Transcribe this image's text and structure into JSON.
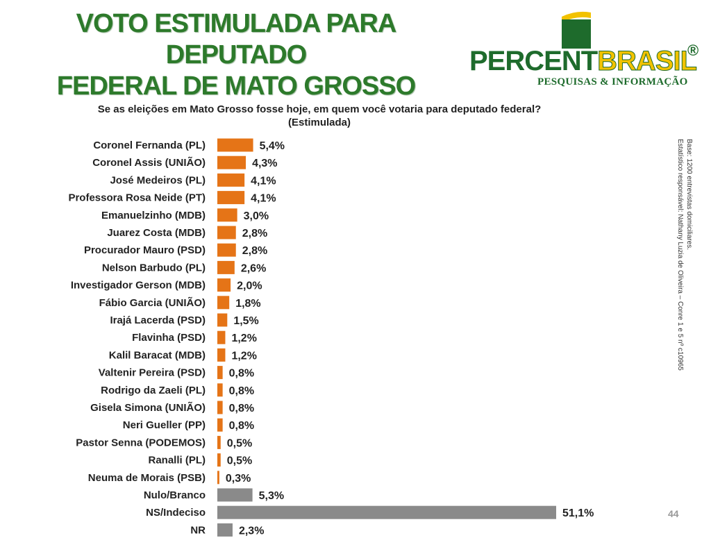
{
  "title_line1": "VOTO ESTIMULADA PARA DEPUTADO",
  "title_line2": "FEDERAL DE MATO GROSSO",
  "logo": {
    "name_part1": "PERCENT",
    "name_part2": "BRASIL",
    "registered": "®",
    "tagline": "PESQUISAS & INFORMAÇÃO",
    "green": "#1e6b2c",
    "yellow": "#f2c200"
  },
  "question_line1": "Se as eleições em Mato Grosso fosse hoje, em quem você votaria para deputado federal?",
  "question_line2": "(Estimulada)",
  "side_note_line1": "Base: 1200 entrevistas domiciliares.",
  "side_note_line2": "Estatístico responsável: Nathany Luzia de Oliveira – Conre 1 e 5 nº c10965",
  "page_number": "44",
  "chart_data": {
    "type": "bar",
    "orientation": "horizontal",
    "xlim": [
      0,
      55
    ],
    "grid": false,
    "categories": [
      "Coronel Fernanda (PL)",
      "Coronel Assis (UNIÃO)",
      "José Medeiros (PL)",
      "Professora Rosa Neide (PT)",
      "Emanuelzinho (MDB)",
      "Juarez Costa (MDB)",
      "Procurador Mauro (PSD)",
      "Nelson Barbudo (PL)",
      "Investigador Gerson (MDB)",
      "Fábio Garcia (UNIÃO)",
      "Irajá Lacerda (PSD)",
      "Flavinha (PSD)",
      "Kalil Baracat (MDB)",
      "Valtenir Pereira (PSD)",
      "Rodrigo da Zaeli (PL)",
      "Gisela Simona (UNIÃO)",
      "Neri Gueller (PP)",
      "Pastor Senna (PODEMOS)",
      "Ranalli (PL)",
      "Neuma de Morais (PSB)",
      "Nulo/Branco",
      "NS/Indeciso",
      "NR"
    ],
    "values": [
      5.4,
      4.3,
      4.1,
      4.1,
      3.0,
      2.8,
      2.8,
      2.6,
      2.0,
      1.8,
      1.5,
      1.2,
      1.2,
      0.8,
      0.8,
      0.8,
      0.8,
      0.5,
      0.5,
      0.3,
      5.3,
      51.1,
      2.3
    ],
    "value_labels": [
      "5,4%",
      "4,3%",
      "4,1%",
      "4,1%",
      "3,0%",
      "2,8%",
      "2,8%",
      "2,6%",
      "2,0%",
      "1,8%",
      "1,5%",
      "1,2%",
      "1,2%",
      "0,8%",
      "0,8%",
      "0,8%",
      "0,8%",
      "0,5%",
      "0,5%",
      "0,3%",
      "5,3%",
      "51,1%",
      "2,3%"
    ],
    "colors": [
      "#e57417",
      "#e57417",
      "#e57417",
      "#e57417",
      "#e57417",
      "#e57417",
      "#e57417",
      "#e57417",
      "#e57417",
      "#e57417",
      "#e57417",
      "#e57417",
      "#e57417",
      "#e57417",
      "#e57417",
      "#e57417",
      "#e57417",
      "#e57417",
      "#e57417",
      "#e57417",
      "#8a8a8a",
      "#8a8a8a",
      "#8a8a8a"
    ]
  }
}
